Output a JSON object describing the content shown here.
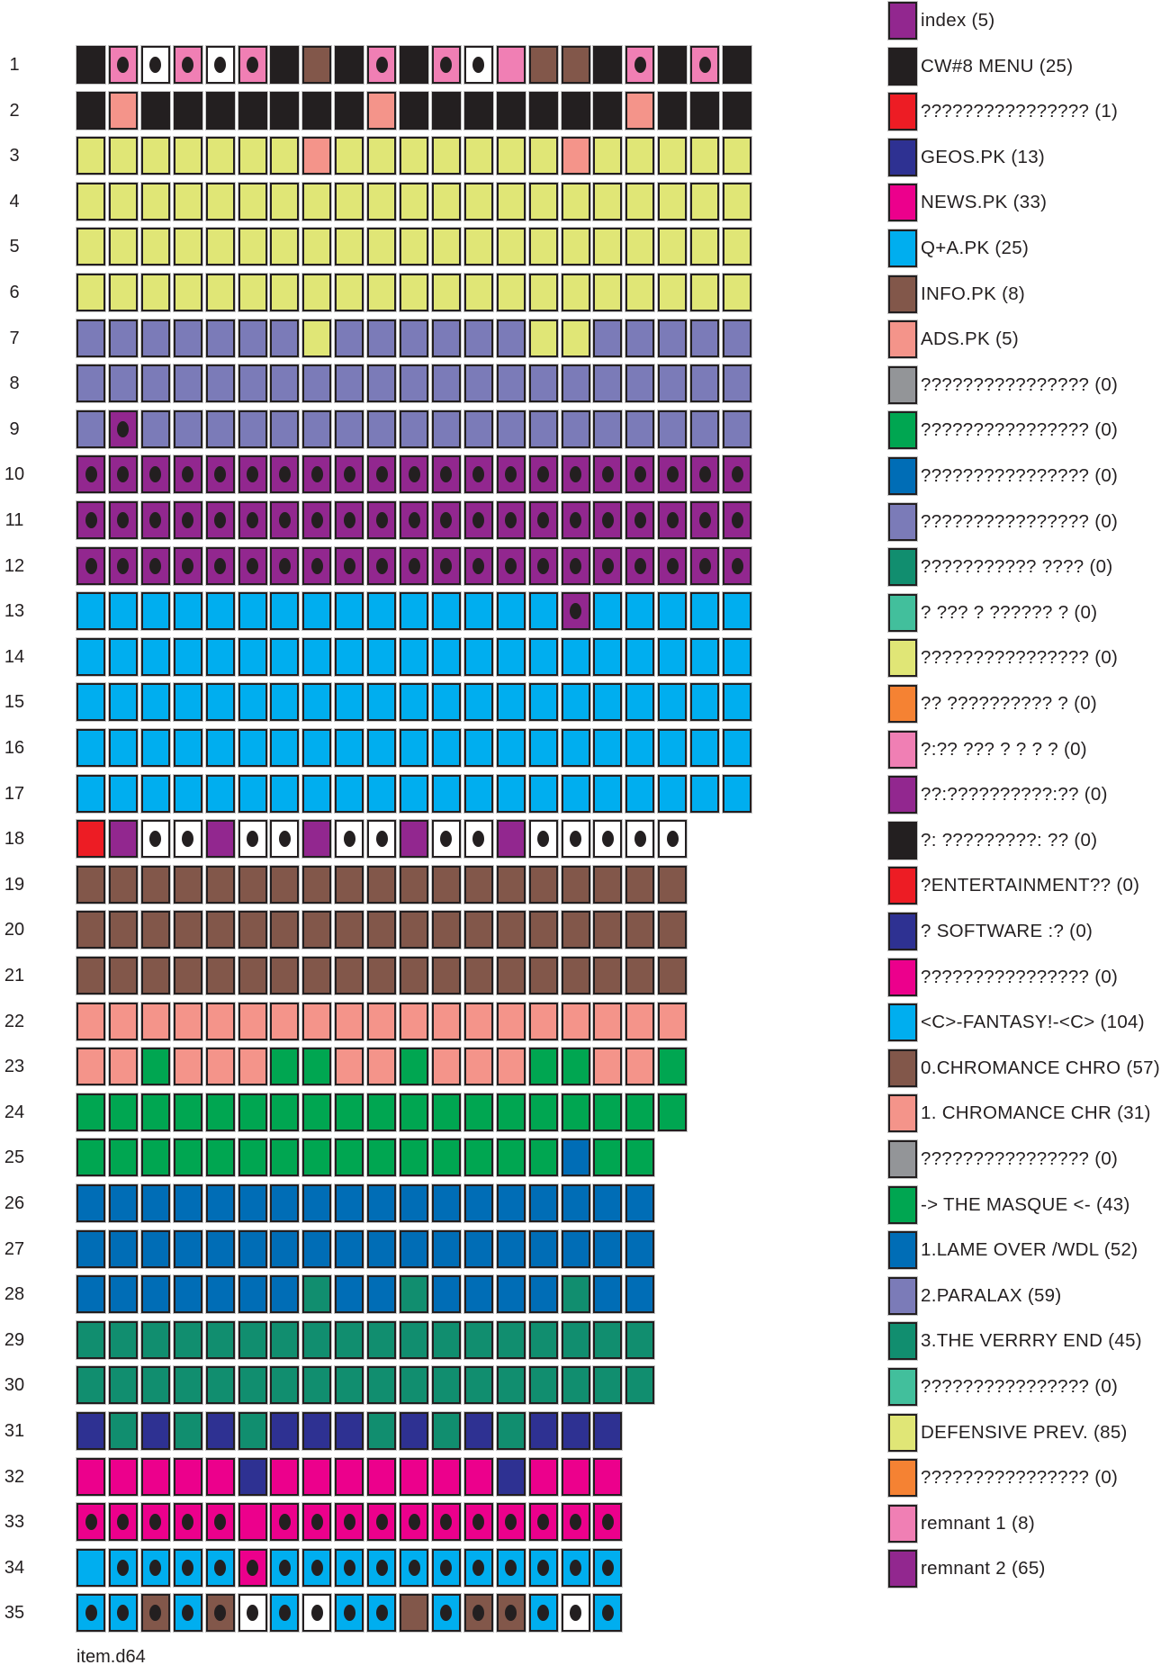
{
  "palette": {
    "K": "#231f20",
    "P": "#f07fb4",
    "W": "#ffffff",
    "B": "#82574a",
    "S": "#f4948a",
    "Y": "#e0e676",
    "L": "#7b7bb8",
    "V": "#92278f",
    "C": "#00aeef",
    "R": "#ed1c24",
    "N": "#2e3192",
    "M": "#ec008c",
    "G": "#00a651",
    "D": "#006db6",
    "T": "#118e6f",
    "A": "#42bf9c",
    "O": "#f58233",
    "X": "#939598"
  },
  "tracks": [
    {
      "label": "1",
      "cells": "K P. W. P. W. P. K B K P. K P. W. P B B K P. K P. K"
    },
    {
      "label": "2",
      "cells": "K S K K K K K K K S K K K K K K K S K K K"
    },
    {
      "label": "3",
      "cells": "Y Y Y Y Y Y Y S Y Y Y Y Y Y Y S Y Y Y Y Y"
    },
    {
      "label": "4",
      "cells": "Y Y Y Y Y Y Y Y Y Y Y Y Y Y Y Y Y Y Y Y Y"
    },
    {
      "label": "5",
      "cells": "Y Y Y Y Y Y Y Y Y Y Y Y Y Y Y Y Y Y Y Y Y"
    },
    {
      "label": "6",
      "cells": "Y Y Y Y Y Y Y Y Y Y Y Y Y Y Y Y Y Y Y Y Y"
    },
    {
      "label": "7",
      "cells": "L L L L L L L Y L L L L L L Y Y L L L L L"
    },
    {
      "label": "8",
      "cells": "L L L L L L L L L L L L L L L L L L L L L"
    },
    {
      "label": "9",
      "cells": "L V. L L L L L L L L L L L L L L L L L L L"
    },
    {
      "label": "10",
      "cells": "V. V. V. V. V. V. V. V. V. V. V. V. V. V. V. V. V. V. V. V. V."
    },
    {
      "label": "11",
      "cells": "V. V. V. V. V. V. V. V. V. V. V. V. V. V. V. V. V. V. V. V. V."
    },
    {
      "label": "12",
      "cells": "V. V. V. V. V. V. V. V. V. V. V. V. V. V. V. V. V. V. V. V. V."
    },
    {
      "label": "13",
      "cells": "C C C C C C C C C C C C C C C V. C C C C C"
    },
    {
      "label": "14",
      "cells": "C C C C C C C C C C C C C C C C C C C C C"
    },
    {
      "label": "15",
      "cells": "C C C C C C C C C C C C C C C C C C C C C"
    },
    {
      "label": "16",
      "cells": "C C C C C C C C C C C C C C C C C C C C C"
    },
    {
      "label": "17",
      "cells": "C C C C C C C C C C C C C C C C C C C C C"
    },
    {
      "label": "18",
      "cells": "R V W. W. V W. W. V W. W. V W. W. V W. W. W. W. W."
    },
    {
      "label": "19",
      "cells": "B B B B B B B B B B B B B B B B B B B"
    },
    {
      "label": "20",
      "cells": "B B B B B B B B B B B B B B B B B B B"
    },
    {
      "label": "21",
      "cells": "B B B B B B B B B B B B B B B B B B B"
    },
    {
      "label": "22",
      "cells": "S S S S S S S S S S S S S S S S S S S"
    },
    {
      "label": "23",
      "cells": "S S G S S S G G S S G S S S G G S S G"
    },
    {
      "label": "24",
      "cells": "G G G G G G G G G G G G G G G G G G G"
    },
    {
      "label": "25",
      "cells": "G G G G G G G G G G G G G G G D G G"
    },
    {
      "label": "26",
      "cells": "D D D D D D D D D D D D D D D D D D"
    },
    {
      "label": "27",
      "cells": "D D D D D D D D D D D D D D D D D D"
    },
    {
      "label": "28",
      "cells": "D D D D D D D T D D T D D D D T D D"
    },
    {
      "label": "29",
      "cells": "T T T T T T T T T T T T T T T T T T"
    },
    {
      "label": "30",
      "cells": "T T T T T T T T T T T T T T T T T T"
    },
    {
      "label": "31",
      "cells": "N T N T N T N N N T N T N T N N N"
    },
    {
      "label": "32",
      "cells": "M M M M M N M M M M M M M N M M M"
    },
    {
      "label": "33",
      "cells": "M. M. M. M. M. M M. M. M. M. M. M. M. M. M. M. M."
    },
    {
      "label": "34",
      "cells": "C C. C. C. C. M. C. C. C. C. C. C. C. C. C. C. C."
    },
    {
      "label": "35",
      "cells": "C. C. B. C. B. W. C. W. C. C. B C. B. B. C. W. C."
    }
  ],
  "legend": [
    {
      "label": "index (5)",
      "color": "V"
    },
    {
      "label": "CW#8 MENU (25)",
      "color": "K"
    },
    {
      "label": "???????????????? (1)",
      "color": "R"
    },
    {
      "label": "GEOS.PK (13)",
      "color": "N"
    },
    {
      "label": "NEWS.PK (33)",
      "color": "M"
    },
    {
      "label": "Q+A.PK (25)",
      "color": "C"
    },
    {
      "label": "INFO.PK (8)",
      "color": "B"
    },
    {
      "label": "ADS.PK (5)",
      "color": "S"
    },
    {
      "label": "???????????????? (0)",
      "color": "X"
    },
    {
      "label": "???????????????? (0)",
      "color": "G"
    },
    {
      "label": "???????????????? (0)",
      "color": "D"
    },
    {
      "label": "???????????????? (0)",
      "color": "L"
    },
    {
      "label": "??????????? ???? (0)",
      "color": "T"
    },
    {
      "label": "? ??? ? ?????? ? (0)",
      "color": "A"
    },
    {
      "label": "???????????????? (0)",
      "color": "Y"
    },
    {
      "label": "?? ?????????? ? (0)",
      "color": "O"
    },
    {
      "label": "?:?? ??? ? ? ? ? (0)",
      "color": "P"
    },
    {
      "label": "??:??????????:?? (0)",
      "color": "V"
    },
    {
      "label": "?: ?????????: ?? (0)",
      "color": "K"
    },
    {
      "label": "?ENTERTAINMENT?? (0)",
      "color": "R"
    },
    {
      "label": "? SOFTWARE :? (0)",
      "color": "N"
    },
    {
      "label": "???????????????? (0)",
      "color": "M"
    },
    {
      "label": "<C>-FANTASY!-<C> (104)",
      "color": "C"
    },
    {
      "label": "0.CHROMANCE CHRO (57)",
      "color": "B"
    },
    {
      "label": "1. CHROMANCE CHR (31)",
      "color": "S"
    },
    {
      "label": "???????????????? (0)",
      "color": "X"
    },
    {
      "label": "-> THE MASQUE <- (43)",
      "color": "G"
    },
    {
      "label": "1.LAME OVER /WDL (52)",
      "color": "D"
    },
    {
      "label": "2.PARALAX (59)",
      "color": "L"
    },
    {
      "label": "3.THE VERRRY END (45)",
      "color": "T"
    },
    {
      "label": "???????????????? (0)",
      "color": "A"
    },
    {
      "label": "DEFENSIVE PREV. (85)",
      "color": "Y"
    },
    {
      "label": "???????????????? (0)",
      "color": "O"
    },
    {
      "label": "remnant 1 (8)",
      "color": "P"
    },
    {
      "label": "remnant 2 (65)",
      "color": "V"
    }
  ],
  "footer": "item.d64"
}
